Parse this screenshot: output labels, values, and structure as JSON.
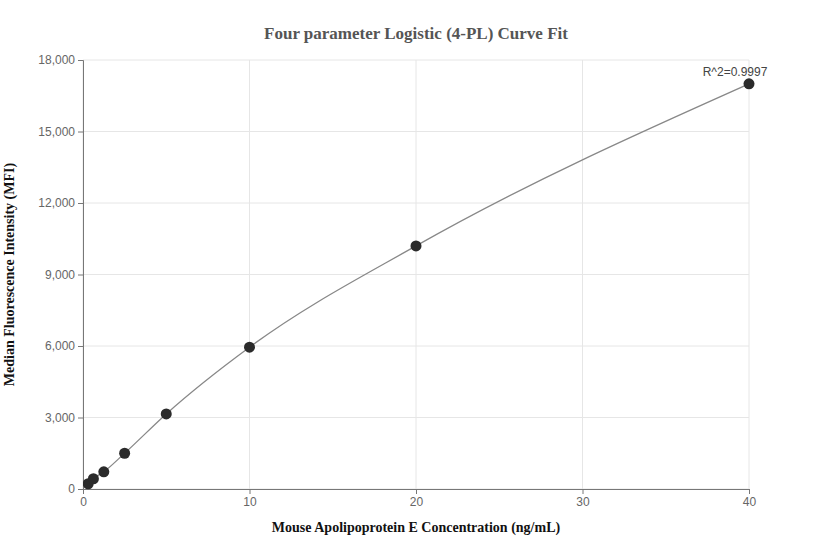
{
  "chart_data": {
    "type": "scatter",
    "title": "Four parameter Logistic (4-PL) Curve Fit",
    "x_label": "Mouse Apolipoprotein E Concentration (ng/mL)",
    "y_label": "Median Fluorescence Intensity (MFI)",
    "annotation": "R^2=0.9997",
    "x": [
      0.3125,
      0.625,
      1.25,
      2.5,
      5,
      10,
      20,
      40
    ],
    "series": [
      {
        "color": "#2b2b2b",
        "marker": "circle",
        "line_style": "solid",
        "values": [
          220,
          430,
          720,
          1500,
          3150,
          5950,
          10200,
          17000
        ]
      }
    ],
    "xlim": [
      0,
      40
    ],
    "xticks": [
      0,
      10,
      20,
      30,
      40
    ],
    "ylim": [
      0,
      18000
    ],
    "yticks": [
      0,
      {
        "value": 3000,
        "label": "3,000"
      },
      {
        "value": 6000,
        "label": "6,000"
      },
      {
        "value": 9000,
        "label": "9,000"
      },
      {
        "value": 12000,
        "label": "12,000"
      },
      {
        "value": 15000,
        "label": "15,000"
      },
      {
        "value": 18000,
        "label": "18,000"
      }
    ],
    "grid": true
  }
}
